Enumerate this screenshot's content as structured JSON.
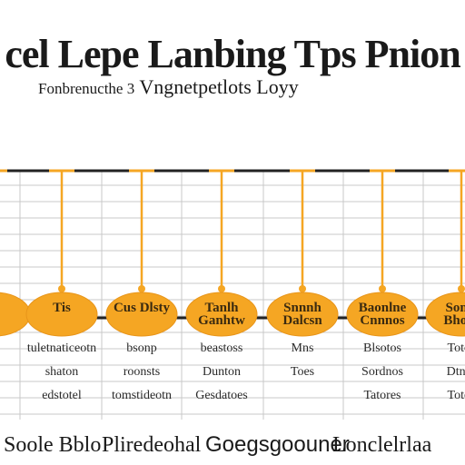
{
  "title": "cel Lepe Lanbing Tps Pnion",
  "subtitle": {
    "part1": "Fonbrenucthe 3",
    "part2": "Vngnetpetlots Loyy"
  },
  "colors": {
    "accent": "#f5a623",
    "accent_dark": "#e8951a",
    "timeline": "#222222",
    "grid": "#c8c8c8"
  },
  "nodes": [
    {
      "label": "",
      "rows": [
        "",
        "",
        ""
      ]
    },
    {
      "label": "Tis",
      "rows": [
        "tuletnaticeotn",
        "shaton",
        "edstotel"
      ]
    },
    {
      "label": "Cus Dlsty",
      "rows": [
        "bsonp",
        "roonsts",
        "tomstideotn"
      ]
    },
    {
      "label": "Tanlh Ganhtw",
      "rows": [
        "beastoss",
        "Dunton",
        "Gesdatoes"
      ]
    },
    {
      "label": "Snnnh Dalcsn",
      "rows": [
        "Mns",
        "Toes",
        ""
      ]
    },
    {
      "label": "Baonlne Cnnnos",
      "rows": [
        "Blsotos",
        "Sordnos",
        "Tatores"
      ]
    },
    {
      "label": "Sonie Bhoce",
      "rows": [
        "Totos",
        "Dtnes",
        "Totos"
      ]
    }
  ],
  "footer": [
    "Soole Bblo",
    "Pliredeohal",
    "Goegsgoouner",
    "Lonclelrlaa"
  ]
}
